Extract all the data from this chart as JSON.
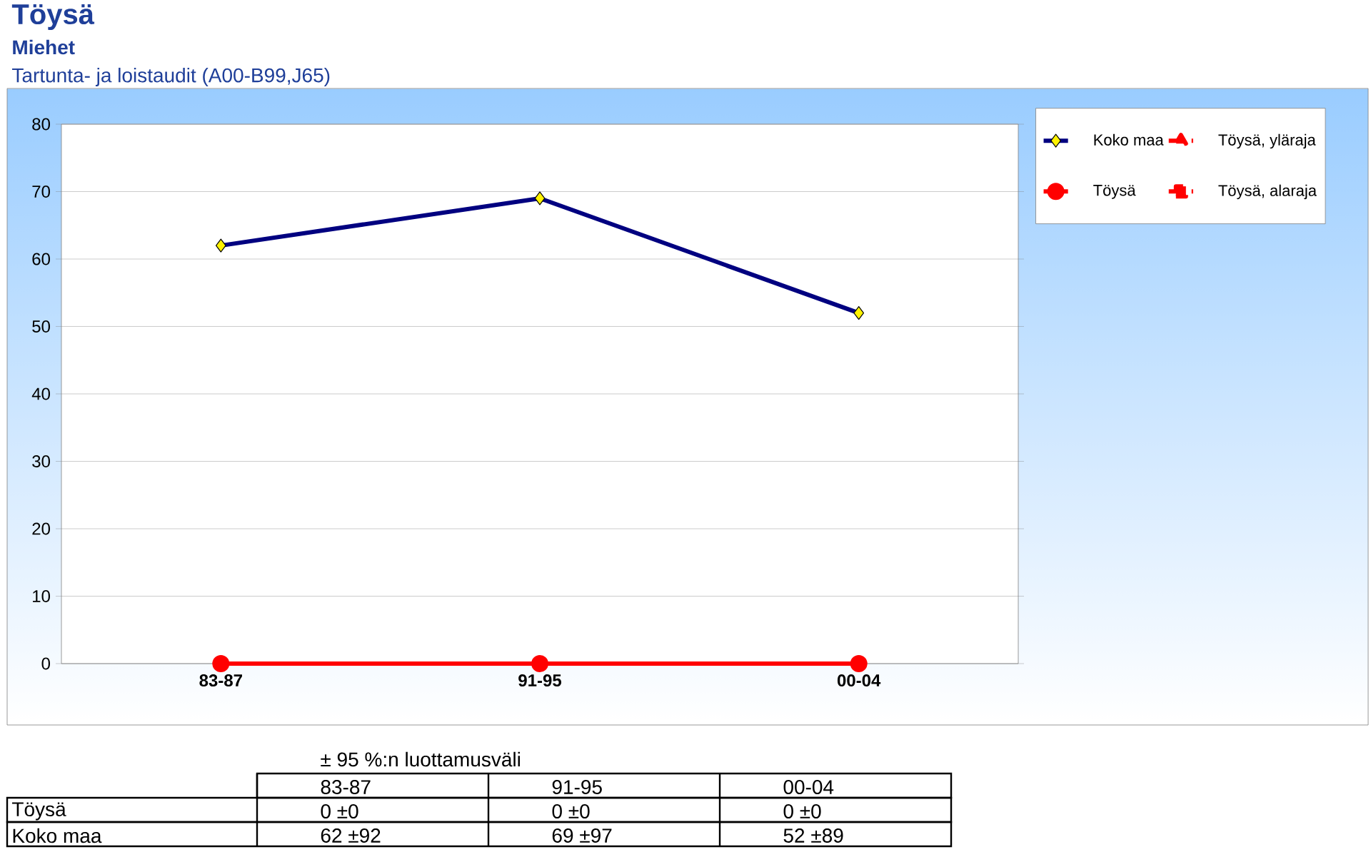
{
  "chart_data": {
    "type": "line",
    "title": "Töysä",
    "subtitle": "Miehet",
    "annotations": [
      "Tartunta- ja loistaudit (A00-B99,J65)",
      "± 95 %:n luottamusväli"
    ],
    "categories": [
      "83-87",
      "91-95",
      "00-04"
    ],
    "series": [
      {
        "name": "Koko maa",
        "color": "#000080",
        "values": [
          62,
          69,
          52
        ],
        "marker": "diamond",
        "line_style": "solid",
        "value_labels": [
          "62 ±92",
          "69 ±97",
          "52 ±89"
        ]
      },
      {
        "name": "Töysä",
        "color": "#ff0000",
        "values": [
          0,
          0,
          0
        ],
        "marker": "circle",
        "line_style": "solid",
        "value_labels": [
          "0 ±0",
          "0 ±0",
          "0 ±0"
        ]
      },
      {
        "name": "Töysä, yläraja",
        "color": "#ff0000",
        "values": [
          null,
          null,
          null
        ],
        "marker": "triangle",
        "line_style": "dashed"
      },
      {
        "name": "Töysä, alaraja",
        "color": "#ff0000",
        "values": [
          null,
          null,
          null
        ],
        "marker": "square",
        "line_style": "dashed"
      }
    ],
    "ylim": [
      0,
      80
    ],
    "yticks": [
      0,
      10,
      20,
      30,
      40,
      50,
      60,
      70,
      80
    ],
    "grid": "y",
    "legend": "top right"
  }
}
